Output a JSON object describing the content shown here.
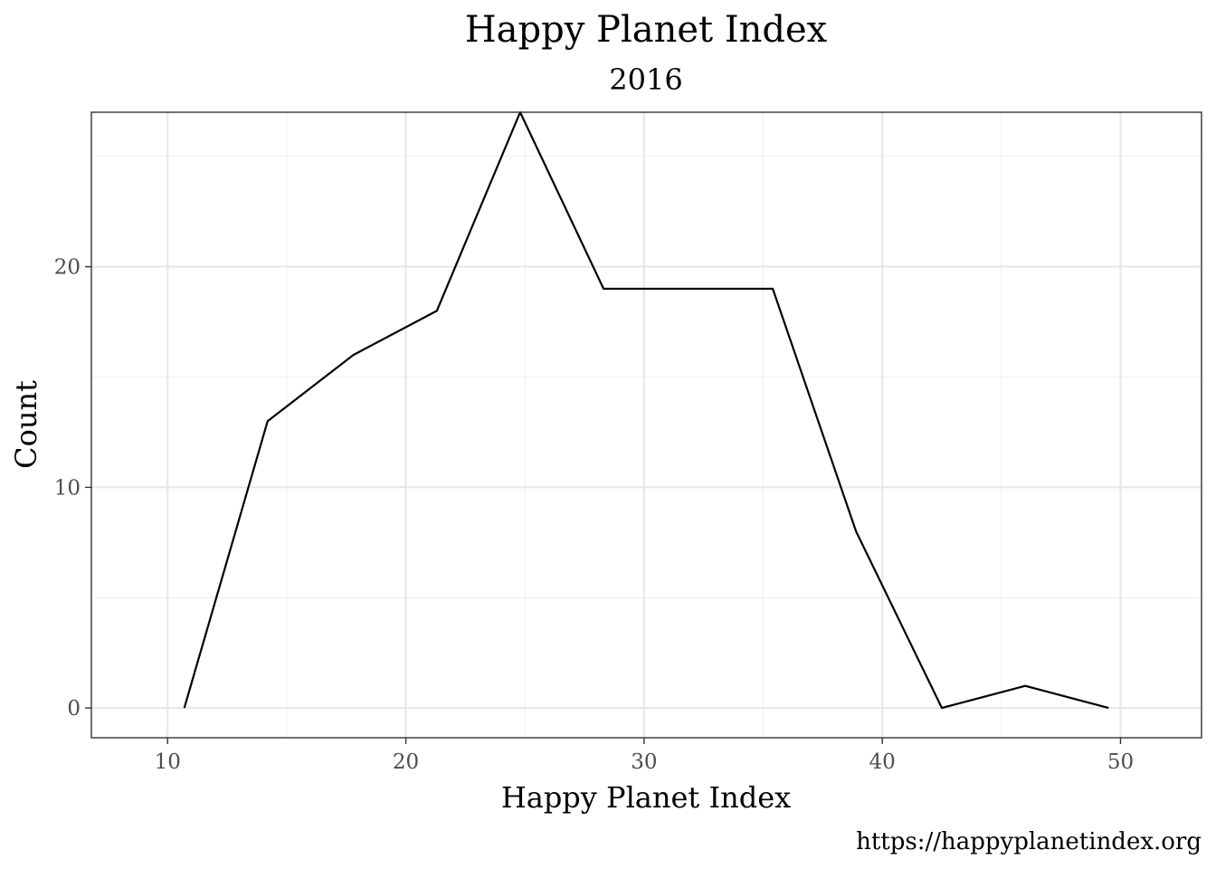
{
  "chart_data": {
    "type": "line",
    "title": "Happy Planet Index",
    "subtitle": "2016",
    "xlabel": "Happy Planet Index",
    "ylabel": "Count",
    "caption": "https://happyplanetindex.org",
    "x_ticks": [
      10,
      20,
      30,
      40,
      50
    ],
    "y_ticks": [
      0,
      10,
      20
    ],
    "xlim": [
      6.8,
      53.4
    ],
    "ylim": [
      -1.35,
      27.0
    ],
    "grid": true,
    "series": [
      {
        "x": [
          10.7,
          14.2,
          17.8,
          21.3,
          24.8,
          28.3,
          31.9,
          35.4,
          38.9,
          42.5,
          46.0,
          49.5
        ],
        "y": [
          0,
          13,
          16,
          18,
          27,
          19,
          19,
          19,
          8,
          0,
          1,
          0
        ]
      }
    ]
  }
}
